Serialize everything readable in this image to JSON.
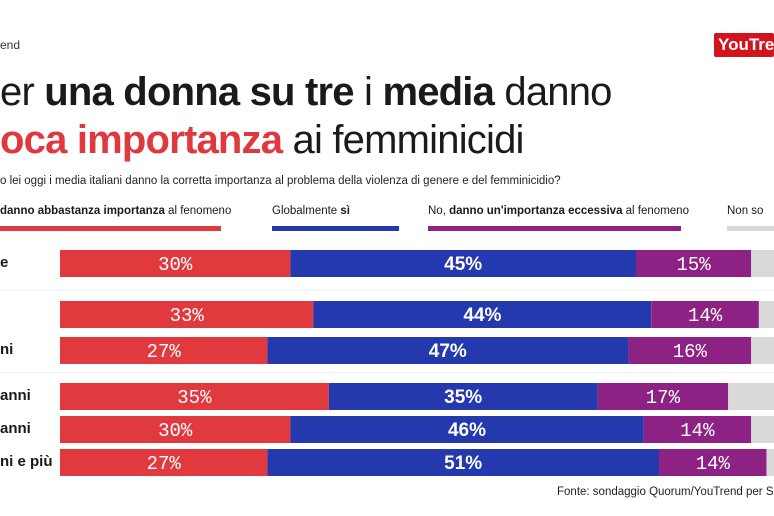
{
  "header": {
    "brand": "end",
    "logo_text": "YouTre",
    "title_line1": [
      {
        "text": "er ",
        "style": "normal"
      },
      {
        "text": "una donna su tre",
        "style": "bold"
      },
      {
        "text": " i ",
        "style": "normal"
      },
      {
        "text": "media",
        "style": "bold"
      },
      {
        "text": " danno",
        "style": "normal"
      }
    ],
    "title_line2": [
      {
        "text": "oca importanza",
        "style": "red"
      },
      {
        "text": " ai femminicidi",
        "style": "normal"
      }
    ],
    "question": "o lei oggi i media italiani danno la corretta importanza al problema della violenza di genere e del femminicidio?"
  },
  "legend": [
    {
      "parts": [
        {
          "text": "danno abbastanza importanza",
          "bold": true
        },
        {
          "text": " al fenomeno",
          "bold": false
        }
      ],
      "color": "#e0393e"
    },
    {
      "parts": [
        {
          "text": "Globalmente ",
          "bold": false
        },
        {
          "text": "sì",
          "bold": true
        }
      ],
      "color": "#2439ae"
    },
    {
      "parts": [
        {
          "text": "No, ",
          "bold": false
        },
        {
          "text": "danno un'importanza eccessiva",
          "bold": true
        },
        {
          "text": " al fenomeno",
          "bold": false
        }
      ],
      "color": "#8e2284"
    },
    {
      "parts": [
        {
          "text": "Non so",
          "bold": false
        }
      ],
      "color": "#d9d9d9"
    }
  ],
  "chart_data": {
    "type": "bar",
    "orientation": "horizontal",
    "stacked": true,
    "percent": true,
    "categories": [
      "e",
      "",
      "ni",
      "anni",
      "anni",
      "ni e più"
    ],
    "series": [
      {
        "name": "danno abbastanza importanza al fenomeno",
        "color": "#e0393e",
        "values": [
          30,
          33,
          27,
          35,
          30,
          27
        ],
        "bold": false
      },
      {
        "name": "Globalmente sì",
        "color": "#2439ae",
        "values": [
          45,
          44,
          47,
          35,
          46,
          51
        ],
        "bold": true
      },
      {
        "name": "No, danno un'importanza eccessiva al fenomeno",
        "color": "#8e2284",
        "values": [
          15,
          14,
          16,
          17,
          14,
          14
        ],
        "bold": false
      },
      {
        "name": "Non so",
        "color": "#d9d9d9",
        "values": [
          10,
          9,
          10,
          13,
          10,
          8
        ],
        "bold": false
      }
    ]
  },
  "source": "Fonte: sondaggio Quorum/YouTrend per Sky"
}
